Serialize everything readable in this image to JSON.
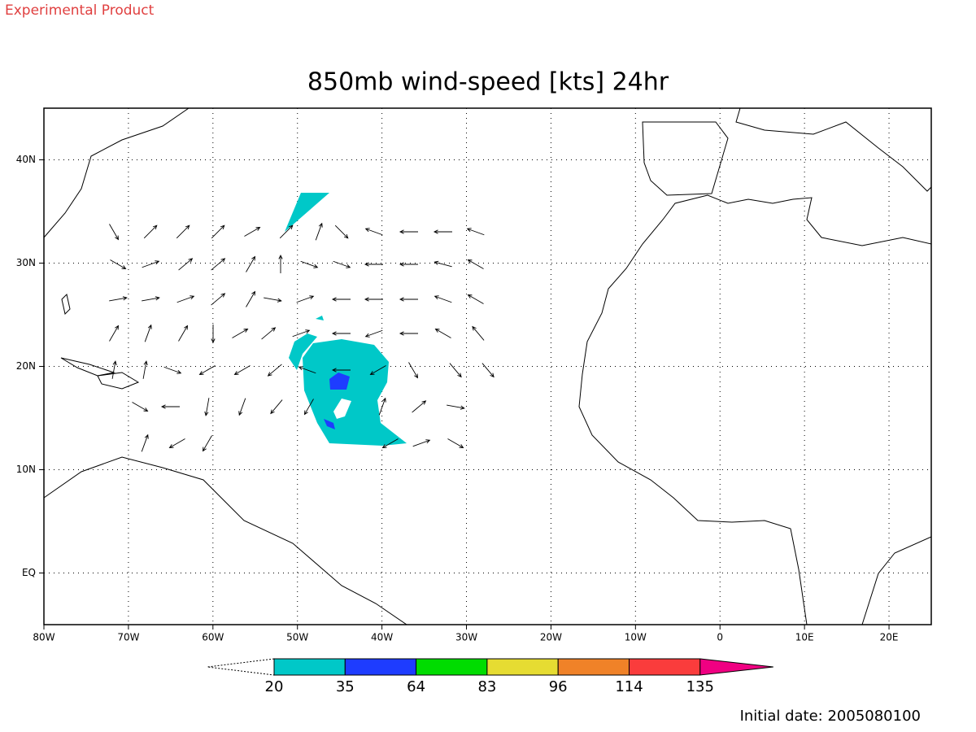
{
  "header": {
    "note": "Experimental Product"
  },
  "map": {
    "title": "850mb wind-speed [kts] 24hr",
    "xlim": [
      -80,
      25
    ],
    "xticks": [
      {
        "value": -80,
        "label": "80W"
      },
      {
        "value": -70,
        "label": "70W"
      },
      {
        "value": -60,
        "label": "60W"
      },
      {
        "value": -50,
        "label": "50W"
      },
      {
        "value": -40,
        "label": "40W"
      },
      {
        "value": -30,
        "label": "30W"
      },
      {
        "value": -20,
        "label": "20W"
      },
      {
        "value": -10,
        "label": "10W"
      },
      0,
      {
        "value": 10,
        "label": "10E"
      },
      {
        "value": 20,
        "label": "20E"
      }
    ],
    "ylim": [
      -5,
      45
    ],
    "yticks": [
      {
        "value": 0,
        "label": "EQ"
      },
      {
        "value": 10,
        "label": "10N"
      },
      {
        "value": 20,
        "label": "20N"
      },
      {
        "value": 30,
        "label": "30N"
      },
      {
        "value": 40,
        "label": "40N"
      }
    ],
    "grid": true
  },
  "colorbar": {
    "levels": [
      20,
      35,
      64,
      83,
      96,
      114,
      135
    ],
    "colors": [
      "#00c8c8",
      "#1e3cff",
      "#00dc00",
      "#e6dc32",
      "#f08228",
      "#fa3c3c",
      "#f00082"
    ]
  },
  "footer": {
    "initial_date": "Initial date: 2005080100"
  }
}
